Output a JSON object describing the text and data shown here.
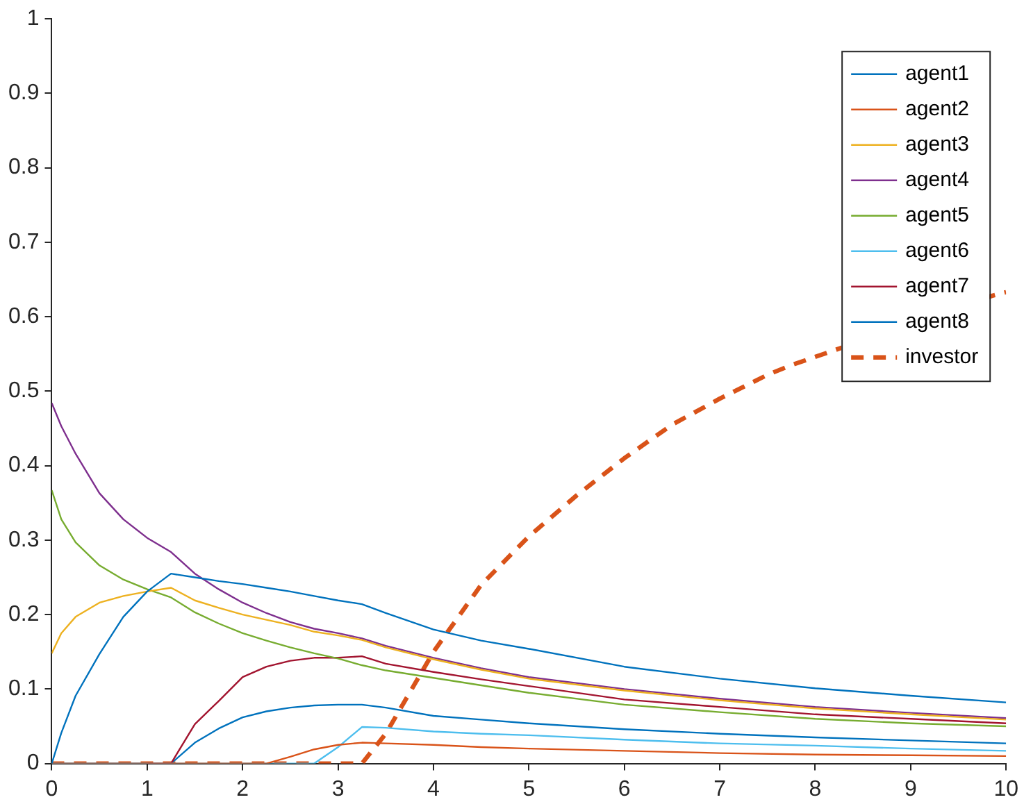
{
  "chart_data": {
    "type": "line",
    "x": [
      0,
      0.1,
      0.25,
      0.5,
      0.75,
      1,
      1.25,
      1.5,
      1.75,
      2,
      2.25,
      2.5,
      2.75,
      3,
      3.25,
      3.5,
      4,
      4.5,
      5,
      6,
      7,
      8,
      9,
      10
    ],
    "series": [
      {
        "name": "agent1",
        "color": "#0072bd",
        "values": [
          0,
          0.041,
          0.091,
          0.147,
          0.197,
          0.231,
          0.255,
          0.25,
          0.245,
          0.241,
          0.236,
          0.231,
          0.225,
          0.219,
          0.214,
          0.202,
          0.18,
          0.165,
          0.154,
          0.13,
          0.114,
          0.101,
          0.091,
          0.082
        ]
      },
      {
        "name": "agent2",
        "color": "#d95319",
        "values": [
          0,
          0,
          0,
          0,
          0,
          0,
          0,
          0,
          0,
          0,
          0,
          0.009,
          0.019,
          0.025,
          0.028,
          0.027,
          0.025,
          0.022,
          0.02,
          0.017,
          0.014,
          0.012,
          0.011,
          0.01
        ]
      },
      {
        "name": "agent3",
        "color": "#edb120",
        "values": [
          0.148,
          0.175,
          0.197,
          0.216,
          0.225,
          0.231,
          0.236,
          0.219,
          0.209,
          0.2,
          0.193,
          0.186,
          0.177,
          0.172,
          0.166,
          0.156,
          0.14,
          0.126,
          0.114,
          0.098,
          0.085,
          0.074,
          0.066,
          0.059
        ]
      },
      {
        "name": "agent4",
        "color": "#7e2f8e",
        "values": [
          0.484,
          0.453,
          0.416,
          0.363,
          0.328,
          0.303,
          0.284,
          0.255,
          0.234,
          0.216,
          0.202,
          0.19,
          0.181,
          0.175,
          0.168,
          0.158,
          0.142,
          0.128,
          0.116,
          0.1,
          0.087,
          0.076,
          0.068,
          0.061
        ]
      },
      {
        "name": "agent5",
        "color": "#77ac30",
        "values": [
          0.367,
          0.328,
          0.297,
          0.266,
          0.247,
          0.234,
          0.223,
          0.203,
          0.188,
          0.175,
          0.165,
          0.156,
          0.148,
          0.141,
          0.132,
          0.125,
          0.115,
          0.105,
          0.095,
          0.079,
          0.069,
          0.06,
          0.054,
          0.05
        ]
      },
      {
        "name": "agent6",
        "color": "#4dbeee",
        "values": [
          0,
          0,
          0,
          0,
          0,
          0,
          0,
          0,
          0,
          0,
          0,
          0,
          0,
          0.022,
          0.049,
          0.048,
          0.043,
          0.04,
          0.038,
          0.032,
          0.027,
          0.024,
          0.02,
          0.017
        ]
      },
      {
        "name": "agent7",
        "color": "#a2142f",
        "values": [
          null,
          null,
          null,
          null,
          null,
          0,
          0,
          0.053,
          0.084,
          0.116,
          0.13,
          0.138,
          0.142,
          0.142,
          0.144,
          0.134,
          0.123,
          0.113,
          0.104,
          0.086,
          0.076,
          0.066,
          0.06,
          0.054
        ]
      },
      {
        "name": "agent8",
        "color": "#0072bd",
        "values": [
          0,
          0,
          0,
          0,
          0,
          0,
          0,
          0.028,
          0.047,
          0.062,
          0.07,
          0.075,
          0.078,
          0.079,
          0.079,
          0.075,
          0.064,
          0.059,
          0.054,
          0.046,
          0.04,
          0.035,
          0.031,
          0.027
        ]
      },
      {
        "name": "investor",
        "color": "#d95319",
        "line_style": "dashed",
        "x": [
          0,
          1,
          2,
          3,
          3.25,
          3.5,
          4,
          4.5,
          5,
          5.5,
          6,
          6.5,
          7,
          7.5,
          7.75,
          9.85,
          10
        ],
        "values": [
          0,
          0,
          0,
          0,
          0,
          0.04,
          0.15,
          0.24,
          0.305,
          0.36,
          0.41,
          0.455,
          0.49,
          0.522,
          0.535,
          0.628,
          0.633
        ]
      }
    ],
    "xlim": [
      0,
      10
    ],
    "xticks": [
      0,
      1,
      2,
      3,
      4,
      5,
      6,
      7,
      8,
      9,
      10
    ],
    "ylim": [
      0,
      1
    ],
    "yticks": [
      0,
      0.1,
      0.2,
      0.3,
      0.4,
      0.5,
      0.6,
      0.7,
      0.8,
      0.9,
      1
    ],
    "legend": "top right",
    "marker": "none"
  }
}
